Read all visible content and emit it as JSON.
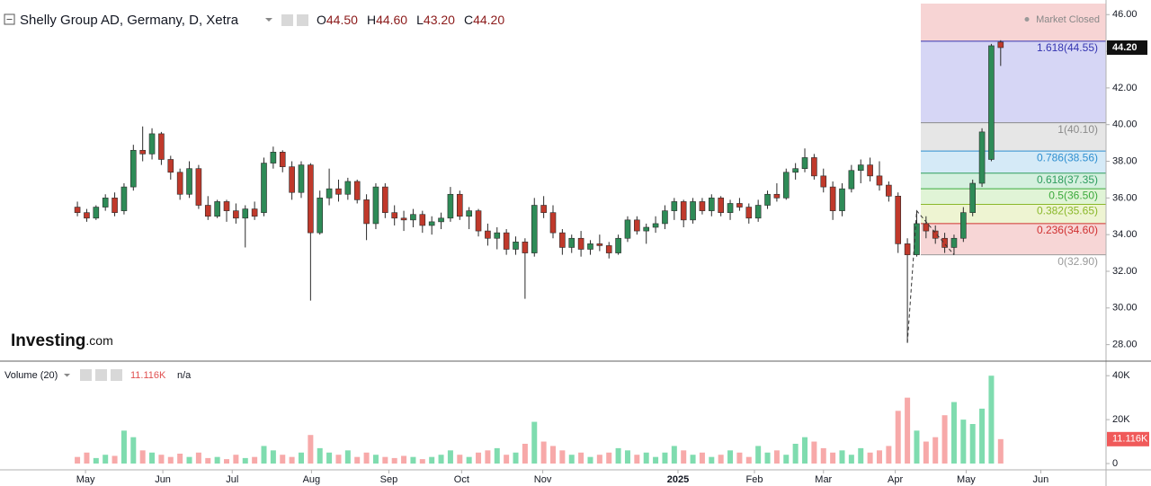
{
  "header": {
    "title": "Shelly Group AD, Germany, D, Xetra",
    "ohlc": [
      {
        "key": "O",
        "value": "44.50"
      },
      {
        "key": "H",
        "value": "44.60"
      },
      {
        "key": "L",
        "value": "43.20"
      },
      {
        "key": "C",
        "value": "44.20"
      }
    ],
    "status": "Market Closed",
    "logo": "Investing",
    "logo_suffix": ".com"
  },
  "chart_data": [
    {
      "type": "candlestick",
      "xlim": [
        -8.3,
        110.3
      ],
      "xticks": [
        {
          "value": 0.87,
          "label": "May"
        },
        {
          "value": 9.16,
          "label": "Jun"
        },
        {
          "value": 16.6,
          "label": "Jul"
        },
        {
          "value": 25.1,
          "label": "Aug"
        },
        {
          "value": 33.4,
          "label": "Sep"
        },
        {
          "value": 41.2,
          "label": "Oct"
        },
        {
          "value": 49.9,
          "label": "Nov"
        },
        {
          "value": 64.4,
          "label": "2025"
        },
        {
          "value": 72.6,
          "label": "Feb"
        },
        {
          "value": 80.0,
          "label": "Mar"
        },
        {
          "value": 87.7,
          "label": "Apr"
        },
        {
          "value": 95.3,
          "label": "May"
        },
        {
          "value": 103.3,
          "label": "Jun"
        }
      ],
      "ylim": [
        27.1,
        46.6
      ],
      "yticks": [
        {
          "value": 28,
          "label": "28.00"
        },
        {
          "value": 30,
          "label": "30.00"
        },
        {
          "value": 32,
          "label": "32.00"
        },
        {
          "value": 34,
          "label": "34.00"
        },
        {
          "value": 36,
          "label": "36.00"
        },
        {
          "value": 38,
          "label": "38.00"
        },
        {
          "value": 40,
          "label": "40.00"
        },
        {
          "value": 42,
          "label": "42.00"
        },
        {
          "value": 44,
          "label": "44.00"
        },
        {
          "value": 46,
          "label": "46.00"
        }
      ],
      "up_color": "#2e8b57",
      "down_color": "#c0392b",
      "ohlc": [
        [
          35.5,
          35.8,
          35.0,
          35.2
        ],
        [
          35.2,
          35.4,
          34.7,
          34.9
        ],
        [
          34.9,
          35.6,
          34.8,
          35.5
        ],
        [
          35.5,
          36.2,
          35.3,
          36.0
        ],
        [
          36.0,
          36.3,
          35.0,
          35.2
        ],
        [
          35.3,
          36.8,
          35.1,
          36.6
        ],
        [
          36.6,
          38.9,
          36.4,
          38.6
        ],
        [
          38.6,
          39.9,
          38.0,
          38.4
        ],
        [
          38.4,
          39.8,
          38.1,
          39.5
        ],
        [
          39.5,
          39.6,
          37.8,
          38.1
        ],
        [
          38.1,
          38.3,
          37.0,
          37.4
        ],
        [
          37.4,
          37.6,
          35.9,
          36.2
        ],
        [
          36.2,
          38.0,
          36.0,
          37.6
        ],
        [
          37.6,
          37.8,
          35.4,
          35.6
        ],
        [
          35.6,
          36.1,
          34.8,
          35.0
        ],
        [
          35.0,
          35.9,
          34.9,
          35.8
        ],
        [
          35.8,
          35.9,
          34.7,
          35.3
        ],
        [
          35.3,
          35.7,
          34.6,
          34.9
        ],
        [
          34.9,
          35.6,
          33.3,
          35.4
        ],
        [
          35.4,
          35.8,
          34.8,
          35.0
        ],
        [
          35.2,
          38.2,
          35.0,
          37.9
        ],
        [
          37.9,
          38.8,
          37.6,
          38.5
        ],
        [
          38.5,
          38.6,
          37.4,
          37.7
        ],
        [
          37.7,
          38.0,
          35.9,
          36.3
        ],
        [
          36.3,
          38.0,
          36.0,
          37.8
        ],
        [
          37.8,
          37.9,
          30.4,
          34.1
        ],
        [
          34.1,
          36.4,
          34.0,
          36.0
        ],
        [
          36.0,
          37.6,
          35.6,
          36.5
        ],
        [
          36.5,
          37.0,
          35.8,
          36.2
        ],
        [
          36.2,
          37.1,
          35.9,
          36.9
        ],
        [
          36.9,
          37.0,
          35.7,
          35.9
        ],
        [
          35.9,
          36.2,
          33.7,
          34.6
        ],
        [
          34.6,
          36.8,
          34.3,
          36.6
        ],
        [
          36.6,
          36.8,
          34.9,
          35.2
        ],
        [
          35.2,
          35.6,
          34.5,
          34.9
        ],
        [
          34.9,
          35.3,
          34.2,
          34.8
        ],
        [
          34.8,
          35.4,
          34.4,
          35.1
        ],
        [
          35.1,
          35.3,
          34.1,
          34.5
        ],
        [
          34.5,
          35.0,
          34.0,
          34.7
        ],
        [
          34.7,
          35.2,
          34.3,
          34.9
        ],
        [
          34.9,
          36.6,
          34.7,
          36.2
        ],
        [
          36.2,
          36.4,
          34.8,
          35.0
        ],
        [
          35.0,
          35.5,
          34.3,
          35.3
        ],
        [
          35.3,
          35.4,
          33.9,
          34.2
        ],
        [
          34.2,
          34.6,
          33.4,
          33.8
        ],
        [
          33.8,
          34.4,
          33.2,
          34.1
        ],
        [
          34.1,
          34.3,
          32.9,
          33.2
        ],
        [
          33.2,
          33.9,
          32.9,
          33.6
        ],
        [
          33.6,
          33.8,
          30.5,
          33.0
        ],
        [
          33.0,
          36.0,
          32.8,
          35.6
        ],
        [
          35.6,
          36.1,
          34.9,
          35.2
        ],
        [
          35.2,
          35.6,
          33.8,
          34.1
        ],
        [
          34.1,
          34.3,
          32.9,
          33.3
        ],
        [
          33.3,
          34.0,
          33.0,
          33.8
        ],
        [
          33.8,
          34.2,
          32.8,
          33.2
        ],
        [
          33.2,
          33.7,
          32.9,
          33.5
        ],
        [
          33.5,
          34.0,
          33.1,
          33.4
        ],
        [
          33.4,
          33.6,
          32.7,
          33.0
        ],
        [
          33.0,
          34.0,
          32.9,
          33.8
        ],
        [
          33.8,
          35.0,
          33.6,
          34.8
        ],
        [
          34.8,
          35.0,
          34.0,
          34.2
        ],
        [
          34.2,
          34.6,
          33.5,
          34.4
        ],
        [
          34.4,
          35.0,
          34.1,
          34.6
        ],
        [
          34.6,
          35.6,
          34.3,
          35.3
        ],
        [
          35.3,
          36.0,
          34.8,
          35.8
        ],
        [
          35.8,
          35.9,
          34.4,
          34.8
        ],
        [
          34.8,
          36.0,
          34.6,
          35.8
        ],
        [
          35.8,
          36.0,
          35.1,
          35.3
        ],
        [
          35.3,
          36.2,
          35.0,
          36.0
        ],
        [
          36.0,
          36.1,
          35.0,
          35.2
        ],
        [
          35.2,
          35.9,
          34.8,
          35.7
        ],
        [
          35.7,
          36.0,
          35.3,
          35.5
        ],
        [
          35.5,
          35.7,
          34.6,
          34.9
        ],
        [
          34.9,
          35.9,
          34.7,
          35.6
        ],
        [
          35.6,
          36.4,
          35.4,
          36.2
        ],
        [
          36.2,
          36.8,
          35.8,
          36.0
        ],
        [
          36.0,
          37.6,
          35.9,
          37.4
        ],
        [
          37.4,
          37.9,
          37.0,
          37.6
        ],
        [
          37.6,
          38.7,
          37.4,
          38.2
        ],
        [
          38.2,
          38.4,
          37.0,
          37.2
        ],
        [
          37.2,
          37.6,
          36.3,
          36.6
        ],
        [
          36.6,
          36.9,
          34.8,
          35.3
        ],
        [
          35.3,
          36.8,
          35.0,
          36.5
        ],
        [
          36.5,
          37.8,
          36.3,
          37.5
        ],
        [
          37.5,
          38.1,
          36.8,
          37.8
        ],
        [
          37.8,
          38.2,
          36.9,
          37.2
        ],
        [
          37.2,
          38.0,
          36.4,
          36.7
        ],
        [
          36.7,
          36.9,
          35.8,
          36.1
        ],
        [
          36.1,
          36.3,
          33.0,
          33.5
        ],
        [
          33.5,
          33.8,
          28.1,
          32.9
        ],
        [
          32.9,
          35.3,
          32.8,
          34.6
        ],
        [
          34.6,
          35.0,
          33.8,
          34.2
        ],
        [
          34.2,
          34.5,
          33.5,
          33.8
        ],
        [
          33.8,
          34.1,
          33.0,
          33.3
        ],
        [
          33.3,
          34.0,
          32.9,
          33.8
        ],
        [
          33.8,
          35.5,
          33.6,
          35.2
        ],
        [
          35.2,
          37.0,
          35.0,
          36.8
        ],
        [
          36.8,
          39.8,
          36.6,
          39.6
        ],
        [
          38.1,
          44.4,
          38.0,
          44.3
        ],
        [
          44.5,
          44.6,
          43.2,
          44.2
        ]
      ],
      "fibonacci_top_fill": "#f7d4d4",
      "fibonacci": [
        {
          "label": "1.618(44.55)",
          "value": 44.55,
          "color": "#3434b0",
          "fill": "#d6d6f5"
        },
        {
          "label": "1(40.10)",
          "value": 40.1,
          "color": "#8a8a8a",
          "fill": "#e6e6e6"
        },
        {
          "label": "0.786(38.56)",
          "value": 38.56,
          "color": "#2f8fd0",
          "fill": "#d5eaf7"
        },
        {
          "label": "0.618(37.35)",
          "value": 37.35,
          "color": "#2e9c5e",
          "fill": "#d5f0df"
        },
        {
          "label": "0.5(36.50)",
          "value": 36.5,
          "color": "#3daa3d",
          "fill": "#e0f4d6"
        },
        {
          "label": "0.382(35.65)",
          "value": 35.65,
          "color": "#8ab82a",
          "fill": "#eef4d2"
        },
        {
          "label": "0.236(34.60)",
          "value": 34.6,
          "color": "#d03030",
          "fill": "#f7d6d6"
        },
        {
          "label": "0(32.90)",
          "value": 32.9,
          "color": "#9a9a9a",
          "fill": "none"
        }
      ]
    },
    {
      "type": "bar",
      "title": "Volume (20)",
      "last_label": "11.116K",
      "ma": "n/a",
      "ylim": [
        0,
        45000
      ],
      "yticks": [
        0,
        {
          "value": 20000,
          "label": "20K"
        },
        {
          "value": 40000,
          "label": "40K"
        }
      ],
      "up_color": "#7fdcaf",
      "down_color": "#f7a9a9",
      "tag_color": "#f05a5a",
      "values": [
        3000,
        5000,
        2500,
        4000,
        3500,
        15000,
        12000,
        6000,
        5000,
        4000,
        3000,
        4500,
        3000,
        5000,
        2500,
        3000,
        2000,
        4000,
        2500,
        3000,
        8000,
        6000,
        4000,
        3000,
        5000,
        13000,
        7000,
        5000,
        4000,
        6000,
        3000,
        5000,
        4000,
        3000,
        2500,
        3500,
        3000,
        2000,
        3000,
        4000,
        6000,
        4000,
        3000,
        5000,
        6000,
        7000,
        4000,
        5000,
        9000,
        19000,
        10000,
        8000,
        6000,
        4000,
        5000,
        3000,
        4000,
        5000,
        7000,
        6000,
        4000,
        5000,
        3000,
        5000,
        8000,
        6000,
        4000,
        5000,
        3000,
        4000,
        6000,
        5000,
        3000,
        8000,
        5000,
        6000,
        4000,
        9000,
        12000,
        10000,
        7000,
        5000,
        6000,
        4000,
        7000,
        5000,
        6000,
        8000,
        24000,
        30000,
        15000,
        10000,
        12000,
        22000,
        28000,
        20000,
        18000,
        25000,
        40000,
        11116
      ]
    }
  ]
}
